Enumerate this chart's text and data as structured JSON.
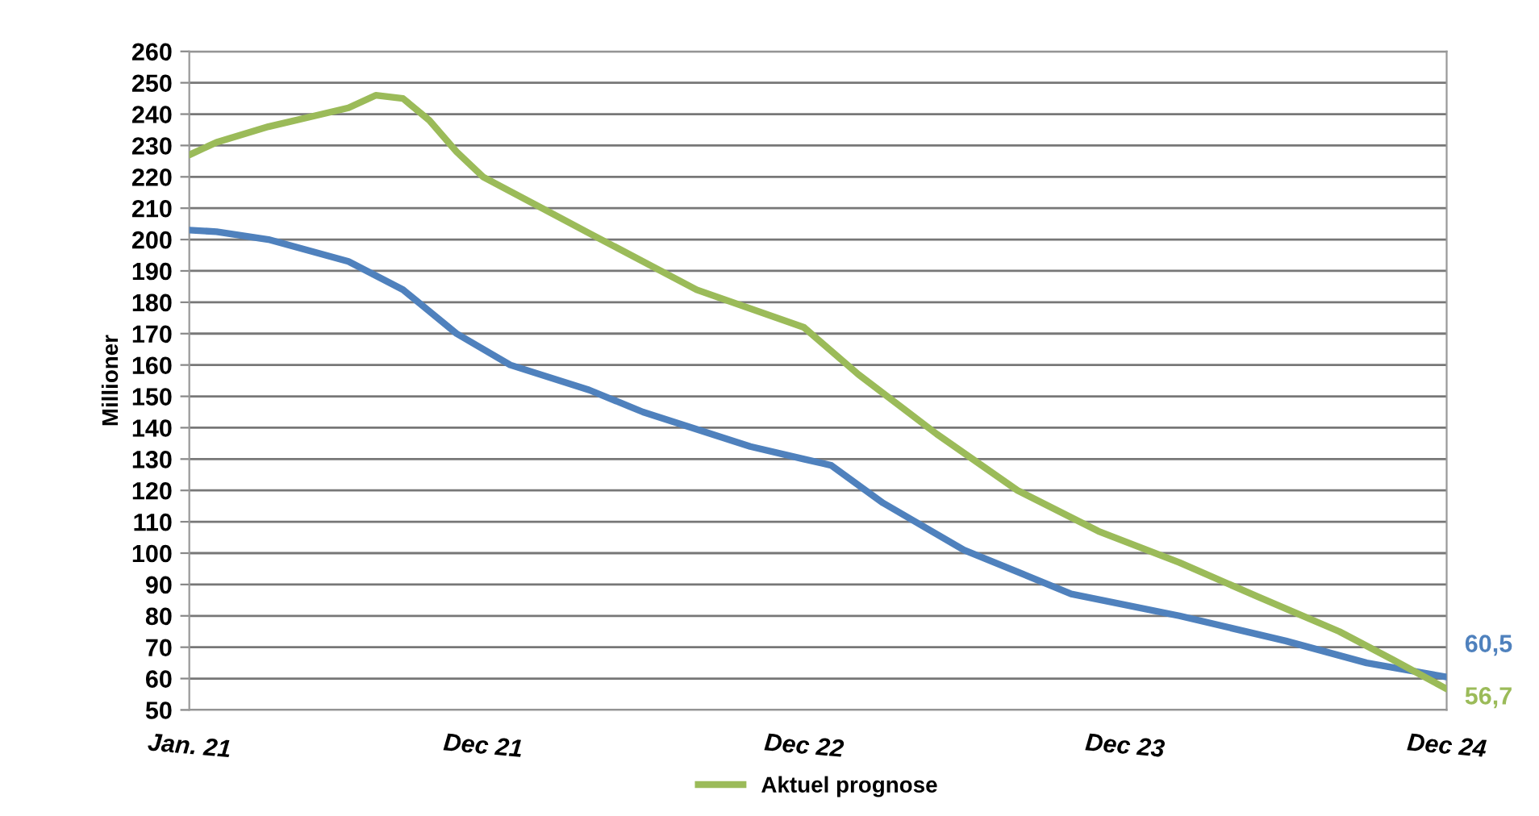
{
  "chart_data": {
    "type": "line",
    "ylabel": "Millioner",
    "ylim": [
      50,
      260
    ],
    "yticks": [
      50,
      60,
      70,
      80,
      90,
      100,
      110,
      120,
      130,
      140,
      150,
      160,
      170,
      180,
      190,
      200,
      210,
      220,
      230,
      240,
      250,
      260
    ],
    "xlim": [
      "2021-01",
      "2024-12"
    ],
    "xticks": [
      {
        "value": "2021-01",
        "label": "Jan. 21"
      },
      {
        "value": "2021-12",
        "label": "Dec 21"
      },
      {
        "value": "2022-12",
        "label": "Dec 22"
      },
      {
        "value": "2023-12",
        "label": "Dec 23"
      },
      {
        "value": "2024-12",
        "label": "Dec 24"
      }
    ],
    "grid": "y",
    "legend": "bottom",
    "marker": "none",
    "line_style": "solid",
    "series": [
      {
        "color": "#4f81bd",
        "x": [
          "2021-01",
          "2021-02",
          "2021-04",
          "2021-07",
          "2021-09",
          "2021-11",
          "2022-01",
          "2022-04",
          "2022-06",
          "2022-10",
          "2022-12",
          "2023-01",
          "2023-03",
          "2023-06",
          "2023-10",
          "2024-02",
          "2024-06",
          "2024-09",
          "2024-12"
        ],
        "values": [
          203,
          202.5,
          200,
          193,
          184,
          170,
          160,
          152,
          145,
          134,
          130,
          128,
          116,
          101,
          87,
          80,
          72,
          65,
          60.5
        ]
      },
      {
        "name": "Aktuel prognose",
        "color": "#9bbb59",
        "x": [
          "2021-01",
          "2021-02",
          "2021-04",
          "2021-06",
          "2021-07",
          "2021-08",
          "2021-09",
          "2021-10",
          "2021-11",
          "2021-12",
          "2022-04",
          "2022-08",
          "2022-12",
          "2023-02",
          "2023-05",
          "2023-08",
          "2023-11",
          "2024-02",
          "2024-05",
          "2024-08",
          "2024-10",
          "2024-12"
        ],
        "values": [
          227,
          231,
          236,
          240,
          242,
          246,
          245,
          238,
          228,
          220,
          202,
          184,
          172,
          157,
          138,
          120,
          107,
          97,
          86,
          75,
          66,
          56.7
        ]
      }
    ],
    "annotations": [
      {
        "text": "60,5",
        "x": "2024-12",
        "y": 60.5
      },
      {
        "text": "56,7",
        "x": "2024-12",
        "y": 56.7
      }
    ]
  }
}
